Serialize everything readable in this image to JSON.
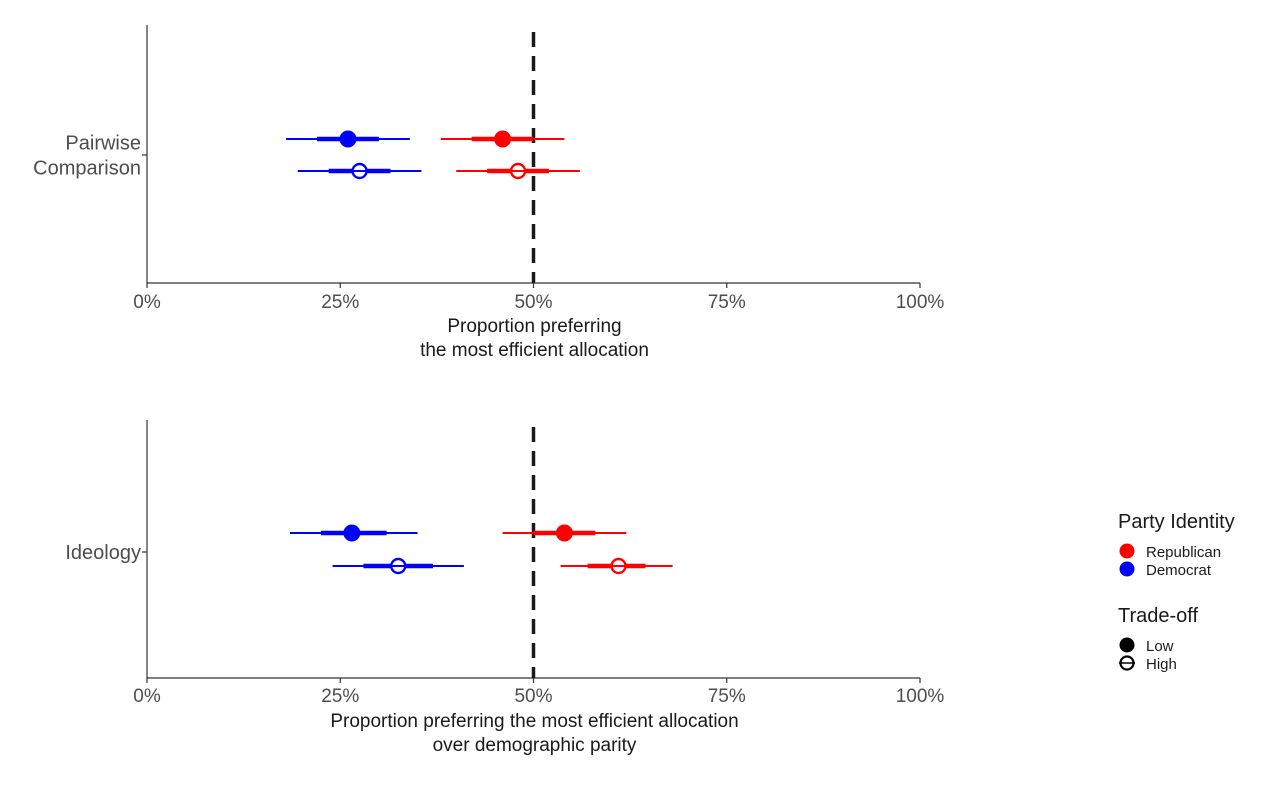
{
  "colors": {
    "republican": "#ff0000",
    "democrat": "#0000ff",
    "refline": "#1a1a1a",
    "axis": "#333333"
  },
  "chart_data": [
    {
      "type": "dot-errorbar",
      "category_label": "Pairwise\nComparison",
      "xlabel": "Proportion preferring\nthe most efficient allocation",
      "xlim": [
        0,
        1
      ],
      "xticks": [
        0,
        0.25,
        0.5,
        0.75,
        1
      ],
      "xtick_labels": [
        "0%",
        "25%",
        "50%",
        "75%",
        "100%"
      ],
      "reference_line": 0.5,
      "points": [
        {
          "party": "Democrat",
          "tradeoff": "Low",
          "estimate": 0.26,
          "ci_inner": [
            0.22,
            0.3
          ],
          "ci_outer": [
            0.18,
            0.34
          ]
        },
        {
          "party": "Democrat",
          "tradeoff": "High",
          "estimate": 0.275,
          "ci_inner": [
            0.235,
            0.315
          ],
          "ci_outer": [
            0.195,
            0.355
          ]
        },
        {
          "party": "Republican",
          "tradeoff": "Low",
          "estimate": 0.46,
          "ci_inner": [
            0.42,
            0.5
          ],
          "ci_outer": [
            0.38,
            0.54
          ]
        },
        {
          "party": "Republican",
          "tradeoff": "High",
          "estimate": 0.48,
          "ci_inner": [
            0.44,
            0.52
          ],
          "ci_outer": [
            0.4,
            0.56
          ]
        }
      ]
    },
    {
      "type": "dot-errorbar",
      "category_label": "Ideology",
      "xlabel": "Proportion preferring the most efficient allocation\nover demographic parity",
      "xlim": [
        0,
        1
      ],
      "xticks": [
        0,
        0.25,
        0.5,
        0.75,
        1
      ],
      "xtick_labels": [
        "0%",
        "25%",
        "50%",
        "75%",
        "100%"
      ],
      "reference_line": 0.5,
      "points": [
        {
          "party": "Democrat",
          "tradeoff": "Low",
          "estimate": 0.265,
          "ci_inner": [
            0.225,
            0.31
          ],
          "ci_outer": [
            0.185,
            0.35
          ]
        },
        {
          "party": "Democrat",
          "tradeoff": "High",
          "estimate": 0.325,
          "ci_inner": [
            0.28,
            0.37
          ],
          "ci_outer": [
            0.24,
            0.41
          ]
        },
        {
          "party": "Republican",
          "tradeoff": "Low",
          "estimate": 0.54,
          "ci_inner": [
            0.5,
            0.58
          ],
          "ci_outer": [
            0.46,
            0.62
          ]
        },
        {
          "party": "Republican",
          "tradeoff": "High",
          "estimate": 0.61,
          "ci_inner": [
            0.57,
            0.645
          ],
          "ci_outer": [
            0.535,
            0.68
          ]
        }
      ]
    }
  ],
  "legend": {
    "party_title": "Party Identity",
    "party_items": [
      {
        "label": "Republican",
        "color_key": "republican"
      },
      {
        "label": "Democrat",
        "color_key": "democrat"
      }
    ],
    "tradeoff_title": "Trade-off",
    "tradeoff_items": [
      {
        "label": "Low",
        "shape": "filled-circle"
      },
      {
        "label": "High",
        "shape": "open-circle"
      }
    ]
  }
}
